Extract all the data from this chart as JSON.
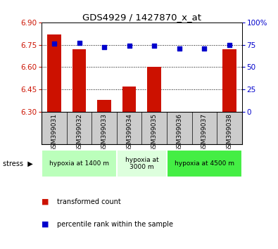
{
  "title": "GDS4929 / 1427870_x_at",
  "samples": [
    "GSM399031",
    "GSM399032",
    "GSM399033",
    "GSM399034",
    "GSM399035",
    "GSM399036",
    "GSM399037",
    "GSM399038"
  ],
  "bar_values": [
    6.82,
    6.72,
    6.38,
    6.47,
    6.6,
    6.3,
    6.3,
    6.72
  ],
  "scatter_values": [
    76,
    77,
    72,
    74,
    74,
    71,
    71,
    75
  ],
  "ylim_left": [
    6.3,
    6.9
  ],
  "ylim_right": [
    0,
    100
  ],
  "yticks_left": [
    6.3,
    6.45,
    6.6,
    6.75,
    6.9
  ],
  "yticks_right": [
    0,
    25,
    50,
    75,
    100
  ],
  "bar_color": "#cc1100",
  "scatter_color": "#0000cc",
  "groups": [
    {
      "label": "hypoxia at 1400 m",
      "start": 0,
      "end": 3,
      "color": "#bbffbb"
    },
    {
      "label": "hypoxia at\n3000 m",
      "start": 3,
      "end": 5,
      "color": "#ddffdd"
    },
    {
      "label": "hypoxia at 4500 m",
      "start": 5,
      "end": 8,
      "color": "#44ee44"
    }
  ],
  "stress_label": "stress",
  "legend_bar_label": "transformed count",
  "legend_scatter_label": "percentile rank within the sample",
  "ytick_left_color": "#cc1100",
  "ytick_right_color": "#0000cc",
  "background_color": "#ffffff",
  "plot_bg_color": "#ffffff",
  "sample_bg_color": "#cccccc",
  "title_fontsize": 9.5,
  "tick_fontsize": 7.5,
  "label_fontsize": 6.5,
  "legend_fontsize": 7.0
}
